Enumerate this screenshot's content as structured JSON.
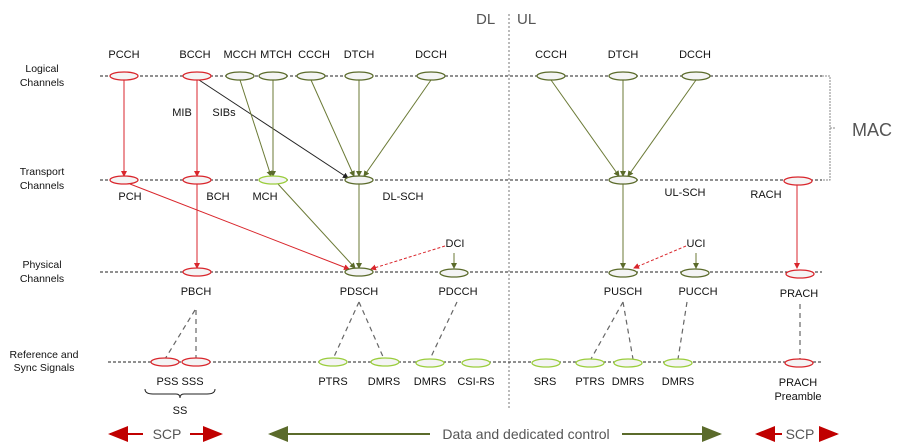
{
  "header": {
    "dl": "DL",
    "ul": "UL",
    "mac": "MAC"
  },
  "rows": {
    "logical": [
      "Logical",
      "Channels"
    ],
    "transport": [
      "Transport",
      "Channels"
    ],
    "physical": [
      "Physical",
      "Channels"
    ],
    "reference": [
      "Reference and",
      "Sync Signals"
    ]
  },
  "logical": {
    "dl": [
      "PCCH",
      "BCCH",
      "MCCH",
      "MTCH",
      "CCCH",
      "DTCH",
      "DCCH"
    ],
    "ul": [
      "CCCH",
      "DTCH",
      "DCCH"
    ]
  },
  "annotations": {
    "mib": "MIB",
    "sibs": "SIBs",
    "dci": "DCI",
    "uci": "UCI",
    "ss": "SS"
  },
  "transport": {
    "dl": [
      "PCH",
      "BCH",
      "MCH",
      "DL-SCH"
    ],
    "ul": [
      "UL-SCH",
      "RACH"
    ]
  },
  "physical": {
    "dl": [
      "PBCH",
      "PDSCH",
      "PDCCH"
    ],
    "ul": [
      "PUSCH",
      "PUCCH",
      "PRACH"
    ]
  },
  "signals": {
    "dl": [
      "PSS SSS",
      "PTRS",
      "DMRS",
      "DMRS",
      "CSI-RS"
    ],
    "ul": [
      "SRS",
      "PTRS",
      "DMRS",
      "DMRS",
      "PRACH",
      "Preamble"
    ]
  },
  "footer": {
    "scp_left": "SCP",
    "data": "Data and dedicated control",
    "scp_right": "SCP"
  },
  "colors": {
    "common_control": "#d9262c",
    "dedicated": "#5b6b2b",
    "multicast_signals": "#9acd3c"
  }
}
